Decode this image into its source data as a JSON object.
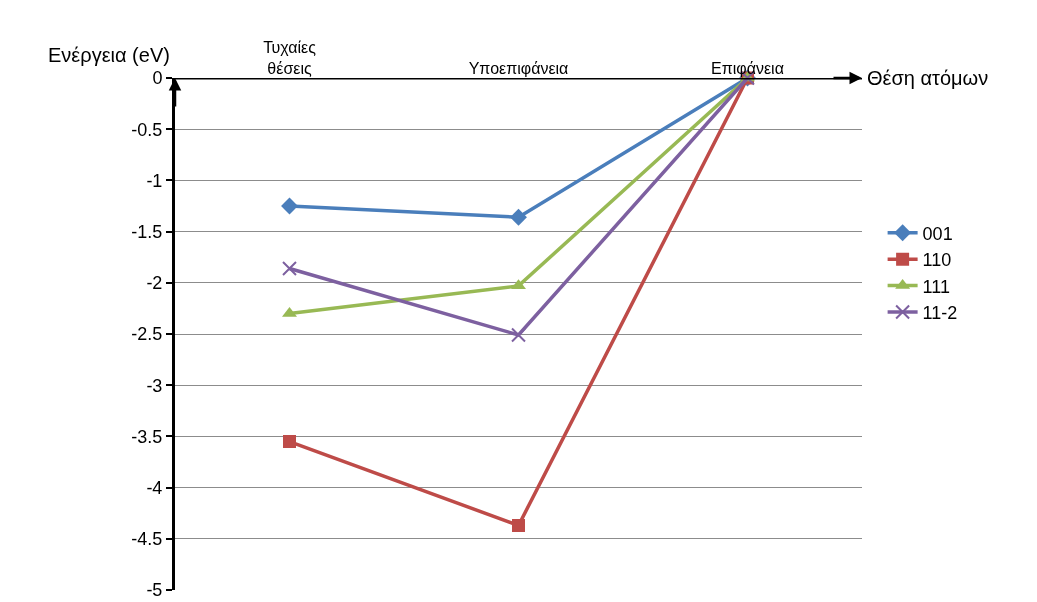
{
  "chart_data": {
    "type": "line",
    "xlabel": "Θέση ατόμων",
    "ylabel": "Ενέργεια (eV)",
    "categories": [
      "Τυχαίες θέσεις",
      "Υποεπιφάνεια",
      "Επιφάνεια"
    ],
    "series": [
      {
        "name": "001",
        "color": "#4a7ebb",
        "marker": "diamond",
        "values": [
          -1.25,
          -1.36,
          0
        ]
      },
      {
        "name": "110",
        "color": "#be4b48",
        "marker": "square",
        "values": [
          -3.55,
          -4.37,
          0
        ]
      },
      {
        "name": "111",
        "color": "#98b954",
        "marker": "triangle",
        "values": [
          -2.3,
          -2.03,
          0
        ]
      },
      {
        "name": "11-2",
        "color": "#7d60a0",
        "marker": "cross",
        "values": [
          -1.86,
          -2.51,
          0
        ]
      }
    ],
    "ylim": [
      -5,
      0
    ],
    "yticks": [
      0,
      -0.5,
      -1,
      -1.5,
      -2,
      -2.5,
      -3,
      -3.5,
      -4,
      -4.5,
      -5
    ],
    "grid": "y",
    "legend": "right",
    "line_style": "solid"
  }
}
